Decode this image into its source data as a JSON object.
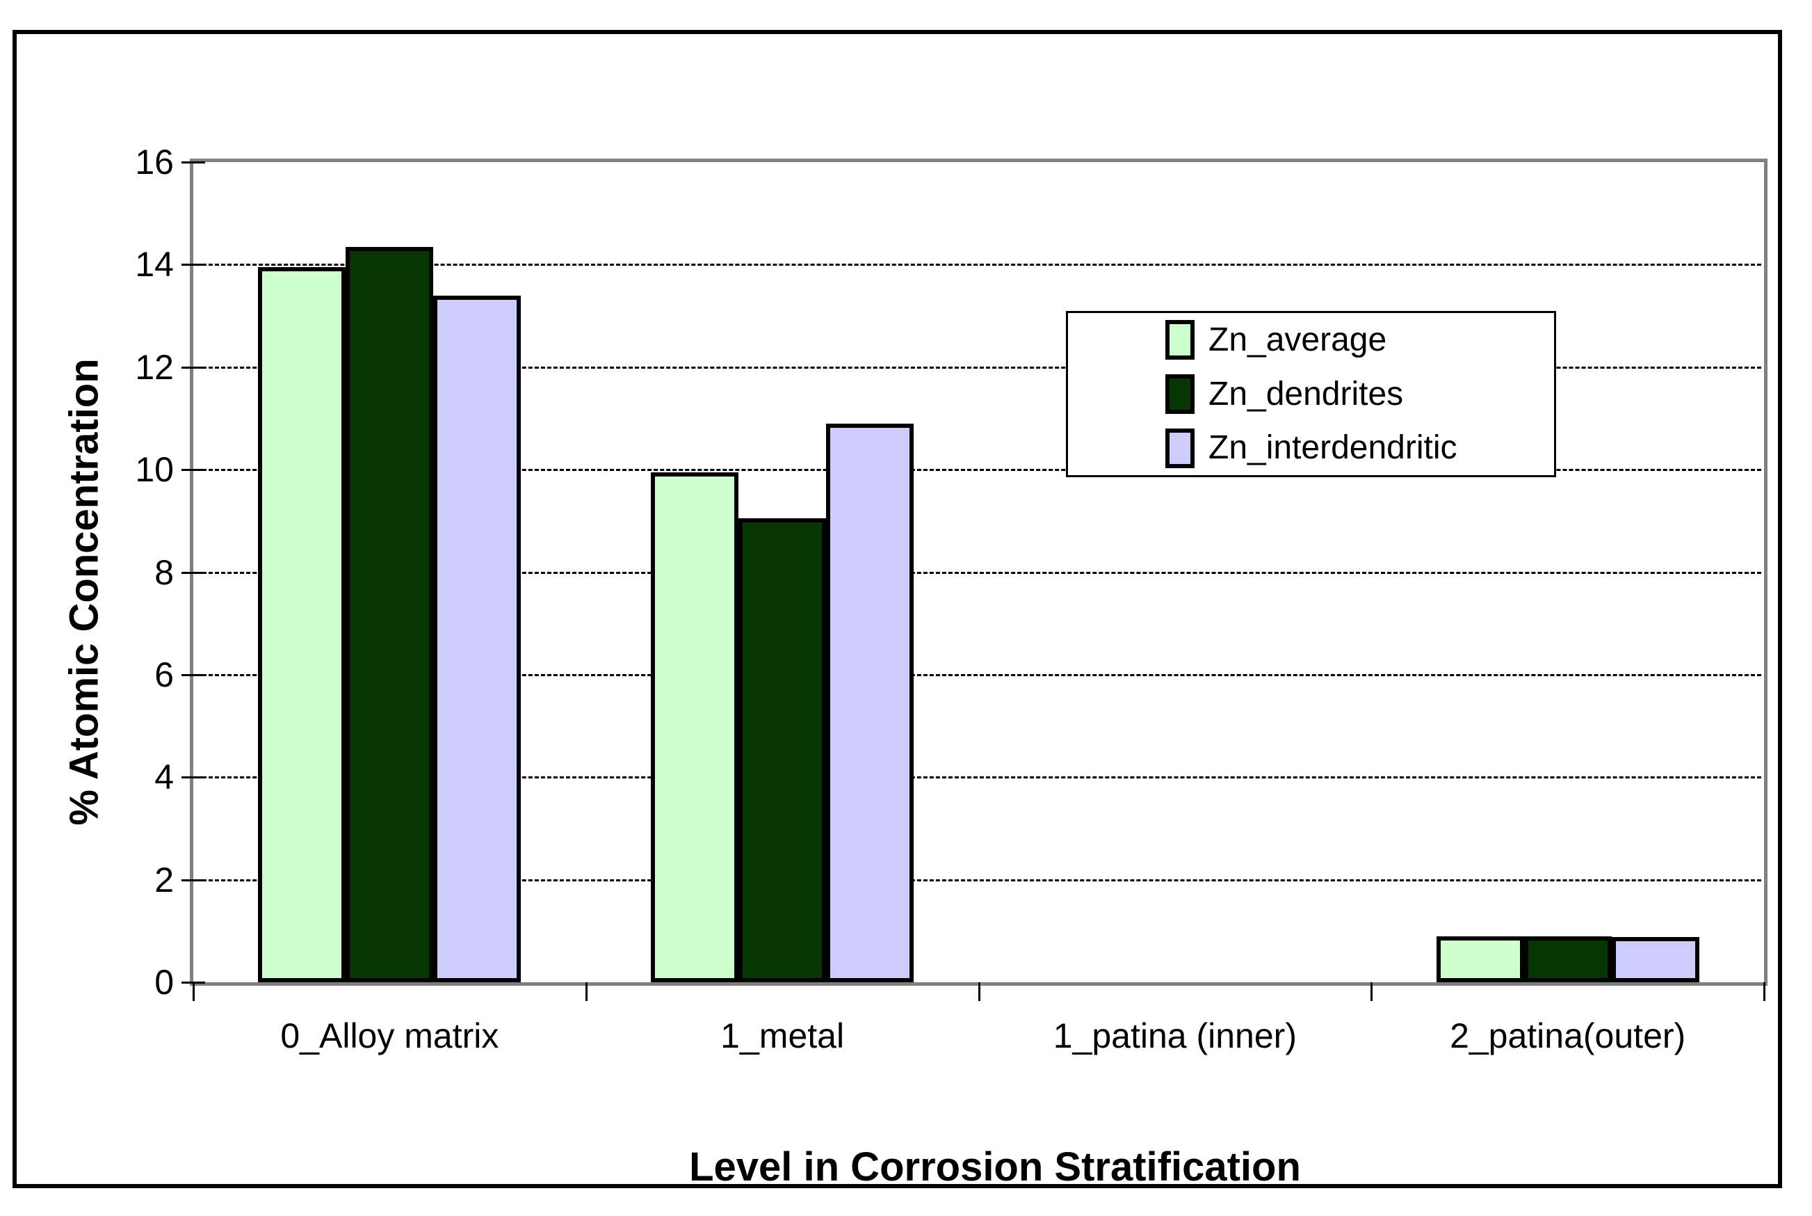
{
  "chart_data": {
    "type": "bar",
    "title": "",
    "xlabel": "Level in Corrosion Stratification",
    "ylabel": "% Atomic Concentration",
    "categories": [
      "0_Alloy matrix",
      "1_metal",
      "1_patina (inner)",
      "2_patina(outer)"
    ],
    "series": [
      {
        "name": "Zn_average",
        "color": "#ccffcc",
        "values": [
          13.95,
          9.95,
          0,
          0.9
        ]
      },
      {
        "name": "Zn_dendrites",
        "color": "#063602",
        "values": [
          14.35,
          9.05,
          0,
          0.9
        ]
      },
      {
        "name": "Zn_interdendritic",
        "color": "#ccccff",
        "values": [
          13.4,
          10.9,
          0,
          0.88
        ]
      }
    ],
    "ylim": [
      0,
      16
    ],
    "yticks": [
      0,
      2,
      4,
      6,
      8,
      10,
      12,
      14,
      16
    ],
    "grid": "horizontal-dashed",
    "legend_position": "inside-upper-right",
    "bar_border_color": "#000000",
    "axis_color": "#808080",
    "gridline_color": "#000000",
    "background_color": "#ffffff"
  }
}
